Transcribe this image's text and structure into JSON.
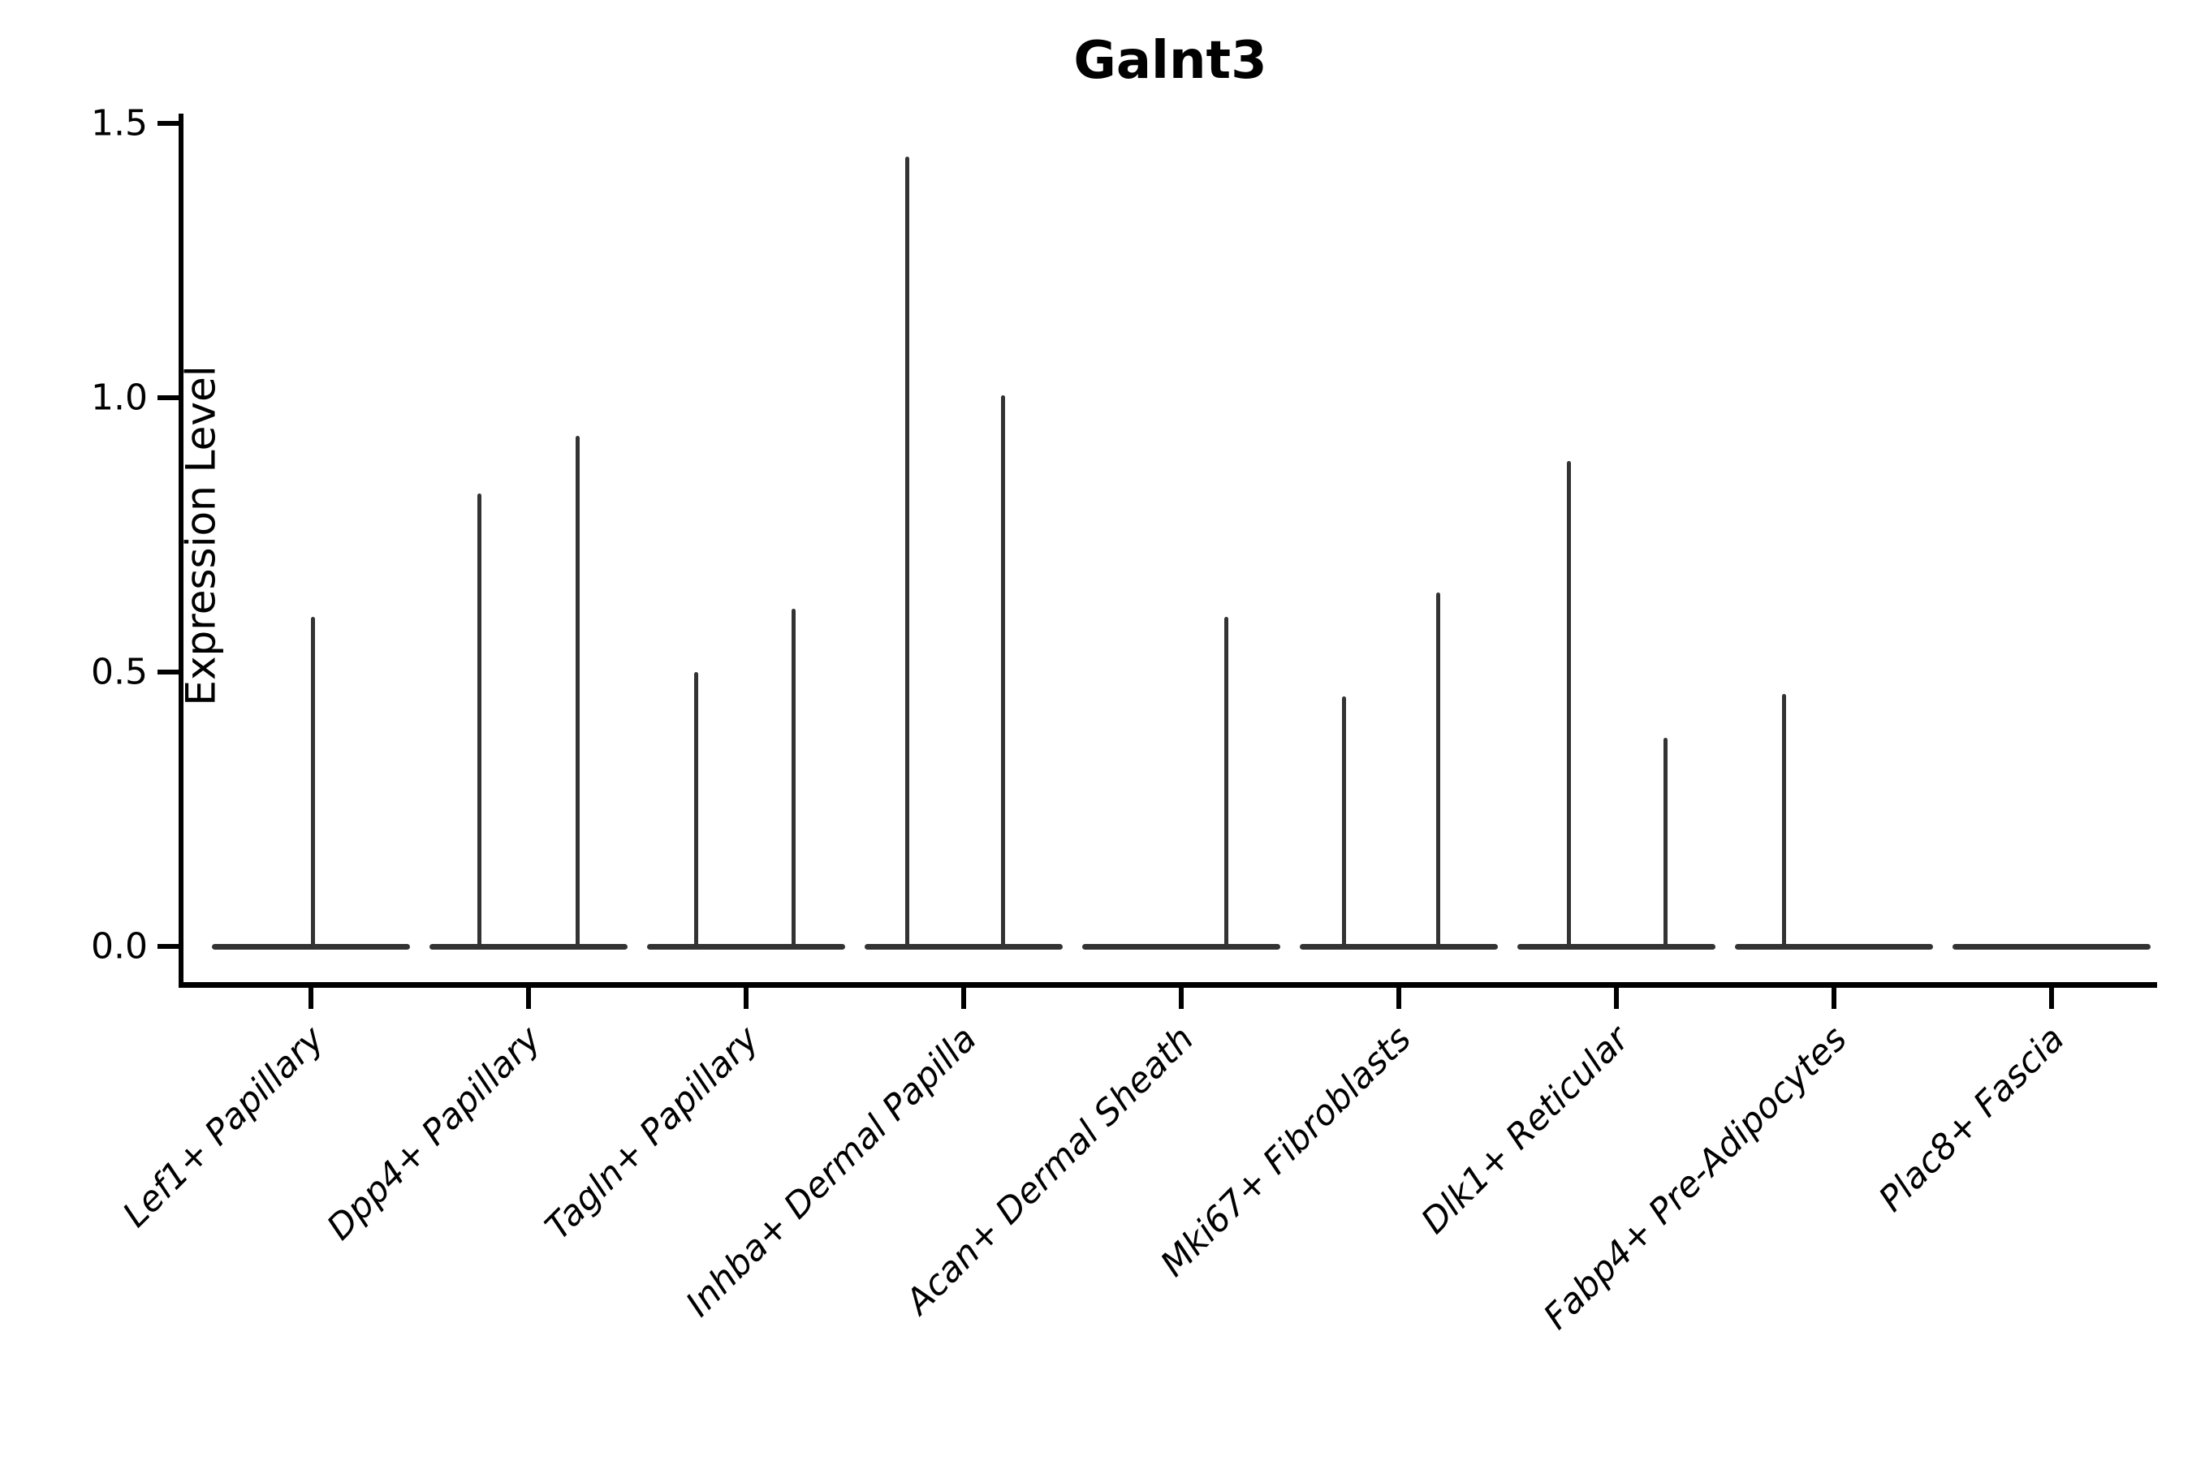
{
  "chart_data": {
    "type": "violin",
    "title": "Galnt3",
    "ylabel": "Expression Level",
    "xlabel": "",
    "ylim": [
      -0.07,
      1.55
    ],
    "yticks": [
      0.0,
      0.5,
      1.0,
      1.5
    ],
    "grid": false,
    "legend": "none",
    "ink_color": "#000000",
    "violin_color": "#333333",
    "note": "Violin plot; each cell type shows a flat density baseline at expression 0 with thin spikes up to the maximum expression values",
    "categories": [
      {
        "label": "Lef1+ Papillary",
        "baseline": 0,
        "spikes": [
          {
            "dx": 2,
            "value": 0.6
          }
        ]
      },
      {
        "label": "Dpp4+ Papillary",
        "baseline": 0,
        "spikes": [
          {
            "dx": -61,
            "value": 0.825
          },
          {
            "dx": 60,
            "value": 0.93
          }
        ]
      },
      {
        "label": "Tagln+ Papillary",
        "baseline": 0,
        "spikes": [
          {
            "dx": -62,
            "value": 0.5
          },
          {
            "dx": 58,
            "value": 0.615
          }
        ]
      },
      {
        "label": "Inhba+ Dermal Papilla",
        "baseline": 0,
        "spikes": [
          {
            "dx": -70,
            "value": 1.44
          },
          {
            "dx": 48,
            "value": 1.005
          }
        ]
      },
      {
        "label": "Acan+ Dermal Sheath",
        "baseline": 0,
        "spikes": [
          {
            "dx": 55,
            "value": 0.6
          }
        ]
      },
      {
        "label": "Mki67+ Fibroblasts",
        "baseline": 0,
        "spikes": [
          {
            "dx": -68,
            "value": 0.455
          },
          {
            "dx": 48,
            "value": 0.645
          }
        ]
      },
      {
        "label": "Dlk1+ Reticular",
        "baseline": 0,
        "spikes": [
          {
            "dx": -59,
            "value": 0.885
          },
          {
            "dx": 60,
            "value": 0.38
          }
        ]
      },
      {
        "label": "Fabp4+ Pre-Adipocytes",
        "baseline": 0,
        "spikes": [
          {
            "dx": -62,
            "value": 0.46
          }
        ]
      },
      {
        "label": "Plac8+ Fascia",
        "baseline": 0,
        "spikes": []
      }
    ]
  }
}
